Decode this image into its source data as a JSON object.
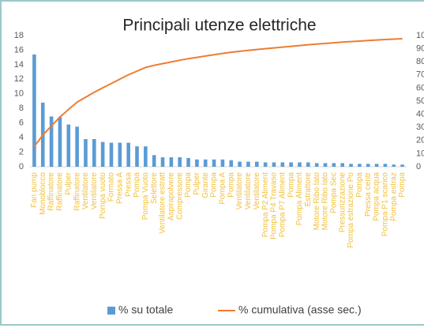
{
  "chart_data": {
    "type": "pareto",
    "title": "Principali utenze elettriche",
    "categories": [
      "Fan pump",
      "Monoblocco",
      "Raffinatore",
      "Raffinatore",
      "Pulper",
      "Raffinatore",
      "Ventilatore",
      "Ventilatore",
      "Pompa vuoto",
      "Formato",
      "Pressa A",
      "Pressa",
      "Pompa",
      "Pompa Vuoto",
      "Selettore",
      "Ventilatore estratt",
      "Aspirapolvere",
      "Compressore",
      "Pompa",
      "Pulper",
      "Girante",
      "Pompa",
      "Pompa A",
      "Pompa",
      "Ventilatore",
      "Ventilatore",
      "Ventilatore",
      "Pompa P2 Aliment",
      "Pompa P4 Travaso",
      "Pompa P7 Aliment",
      "Pompa",
      "Pompa Aliment",
      "Estrattore",
      "Motore Ribo lato",
      "Motore Ribo lato",
      "Pompa Sec",
      "Pressurizzazione",
      "Pompa estrazione Po",
      "Pompa",
      "Pressa centr",
      "Pompa acqua",
      "Pompa P1 scarico",
      "Pompa estraz",
      "Pompa"
    ],
    "series": [
      {
        "name": "% su totale",
        "color": "#5b9bd5",
        "values": [
          15.4,
          8.8,
          6.9,
          6.8,
          5.8,
          5.5,
          3.8,
          3.8,
          3.4,
          3.3,
          3.3,
          3.3,
          2.8,
          2.8,
          1.6,
          1.3,
          1.3,
          1.3,
          1.2,
          1.0,
          1.0,
          1.0,
          1.0,
          0.9,
          0.7,
          0.7,
          0.7,
          0.6,
          0.6,
          0.6,
          0.6,
          0.6,
          0.6,
          0.5,
          0.5,
          0.5,
          0.5,
          0.4,
          0.4,
          0.4,
          0.4,
          0.4,
          0.3,
          0.3
        ]
      },
      {
        "name": "% cumulativa (asse sec.)",
        "color": "#ed7d31",
        "axis": "y2",
        "values": [
          15.4,
          24.2,
          31.1,
          37.9,
          43.7,
          49.2,
          53.0,
          56.8,
          60.2,
          63.5,
          66.8,
          70.1,
          72.9,
          75.7,
          77.3,
          78.6,
          79.9,
          81.2,
          82.4,
          83.4,
          84.4,
          85.4,
          86.4,
          87.3,
          88.0,
          88.7,
          89.4,
          90.0,
          90.6,
          91.2,
          91.8,
          92.4,
          93.0,
          93.5,
          94.0,
          94.5,
          95.0,
          95.4,
          95.8,
          96.2,
          96.6,
          97.0,
          97.3,
          97.6
        ]
      }
    ],
    "ylim": [
      0,
      18
    ],
    "yticks": [
      0,
      2,
      4,
      6,
      8,
      10,
      12,
      14,
      16,
      18
    ],
    "y2lim": [
      0,
      100
    ],
    "y2ticks": [
      0,
      10,
      20,
      30,
      40,
      50,
      60,
      70,
      80,
      90,
      100
    ],
    "legend": "bottom"
  }
}
